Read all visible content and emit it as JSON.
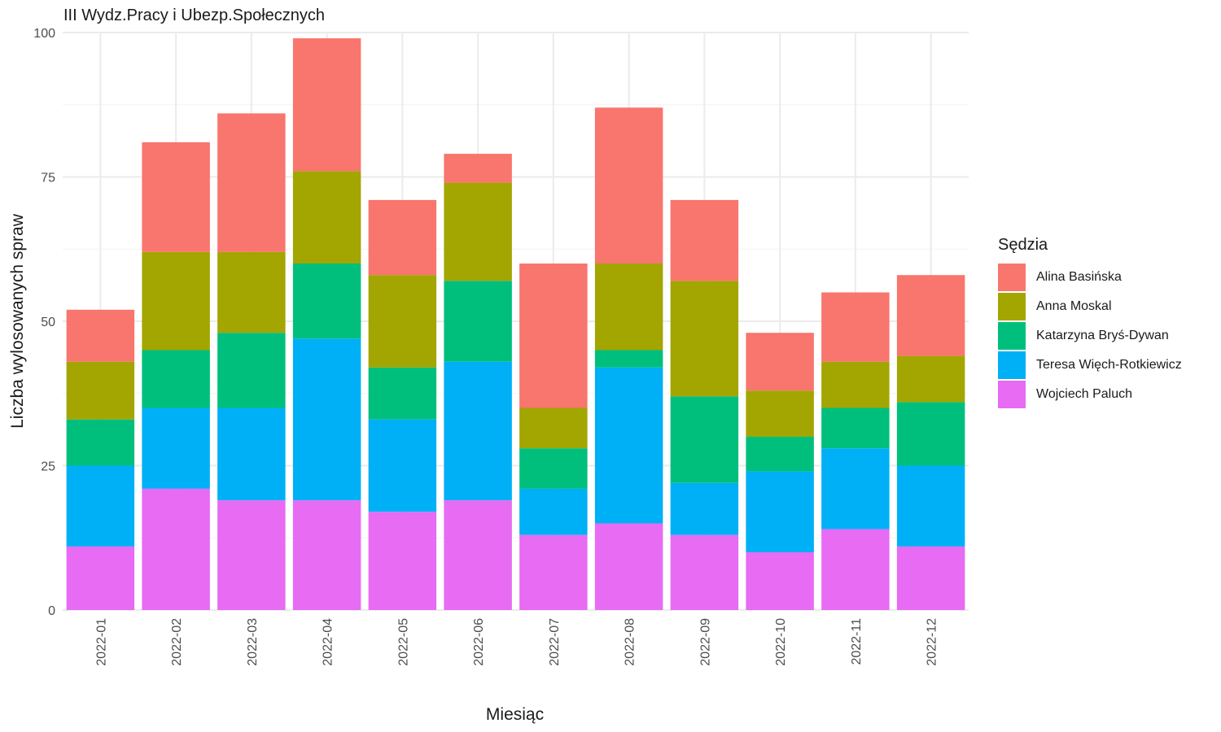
{
  "chart_data": {
    "type": "bar",
    "stacked": true,
    "title": "III Wydz.Pracy i Ubezp.Społecznych",
    "xlabel": "Miesiąc",
    "ylabel": "Liczba wylosowanych spraw",
    "ylim": [
      0,
      100
    ],
    "yticks": [
      0,
      25,
      50,
      75,
      100
    ],
    "grid": true,
    "legend_title": "Sędzia",
    "legend_position": "right",
    "categories": [
      "2022-01",
      "2022-02",
      "2022-03",
      "2022-04",
      "2022-05",
      "2022-06",
      "2022-07",
      "2022-08",
      "2022-09",
      "2022-10",
      "2022-11",
      "2022-12"
    ],
    "series": [
      {
        "name": "Alina Basińska",
        "color": "#F8766D",
        "values": [
          9,
          19,
          24,
          23,
          13,
          5,
          25,
          27,
          14,
          10,
          12,
          14
        ]
      },
      {
        "name": "Anna Moskal",
        "color": "#A3A500",
        "values": [
          10,
          17,
          14,
          16,
          16,
          17,
          7,
          15,
          20,
          8,
          8,
          8
        ]
      },
      {
        "name": "Katarzyna Bryś-Dywan",
        "color": "#00BF7D",
        "values": [
          8,
          10,
          13,
          13,
          9,
          14,
          7,
          3,
          15,
          6,
          7,
          11
        ]
      },
      {
        "name": "Teresa Więch-Rotkiewicz",
        "color": "#00B0F6",
        "values": [
          14,
          14,
          16,
          28,
          16,
          24,
          8,
          27,
          9,
          14,
          14,
          14
        ]
      },
      {
        "name": "Wojciech Paluch",
        "color": "#E76BF3",
        "values": [
          11,
          21,
          19,
          19,
          17,
          19,
          13,
          15,
          13,
          10,
          14,
          11
        ]
      }
    ]
  }
}
